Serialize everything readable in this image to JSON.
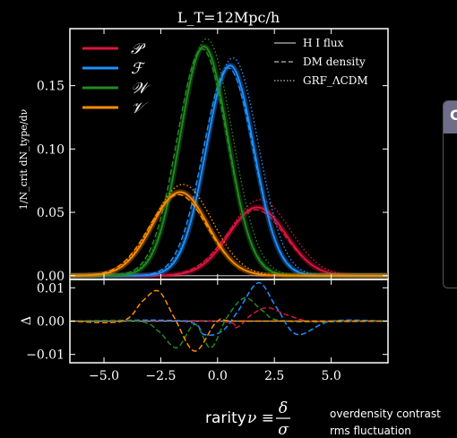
{
  "title": "L_T=12Mpc/h",
  "ylabel_top": "1/N_crit dN_type/dν",
  "ylabel_bottom": "Δ",
  "xlabel": "rarity ν ≡ δ/σ",
  "xlabel_prefix": "rarity",
  "delta_symbol": "δ",
  "sigma_symbol": "σ",
  "nu_symbol": "ν ≡",
  "side_note_1": "overdensity contrast",
  "side_note_2": "rms fluctuation",
  "side_panel_letter": "C",
  "colors": {
    "P": "#dc143c",
    "F": "#1e90ff",
    "W": "#228b22",
    "V": "#ff8c00",
    "zero_line": "#aaaaaa"
  },
  "chart_data": [
    {
      "type": "line",
      "panel": "top",
      "xlim": [
        -6.5,
        7.5
      ],
      "ylim": [
        -0.003,
        0.195
      ],
      "xticks": [
        -5.0,
        -2.5,
        0.0,
        2.5,
        5.0
      ],
      "yticks": [
        0.0,
        0.05,
        0.1,
        0.15
      ],
      "ytick_labels": [
        "0.00",
        "0.05",
        "0.10",
        "0.15"
      ],
      "legend_types": [
        {
          "key": "P",
          "label": "𝒫"
        },
        {
          "key": "F",
          "label": "ℱ"
        },
        {
          "key": "W",
          "label": "𝒲"
        },
        {
          "key": "V",
          "label": "𝒱"
        }
      ],
      "legend_styles": [
        {
          "style": "solid",
          "label": "H I flux"
        },
        {
          "style": "dashed",
          "label": "DM density"
        },
        {
          "style": "dotted",
          "label": "GRF_ΛCDM"
        }
      ],
      "series": [
        {
          "name": "𝒫",
          "key": "P",
          "mean": 1.75,
          "sigma": 1.25,
          "amp": 0.054
        },
        {
          "name": "ℱ",
          "key": "F",
          "mean": 0.55,
          "sigma": 1.05,
          "amp": 0.166
        },
        {
          "name": "𝒲",
          "key": "W",
          "mean": -0.6,
          "sigma": 1.05,
          "amp": 0.181
        },
        {
          "name": "𝒱",
          "key": "V",
          "mean": -1.65,
          "sigma": 1.22,
          "amp": 0.066
        }
      ]
    },
    {
      "type": "line",
      "panel": "bottom",
      "xlim": [
        -6.5,
        7.5
      ],
      "ylim": [
        -0.0125,
        0.0125
      ],
      "xticks": [
        -5.0,
        -2.5,
        0.0,
        2.5,
        5.0
      ],
      "xtick_labels": [
        "−5.0",
        "−2.5",
        "0.0",
        "2.5",
        "5.0"
      ],
      "yticks": [
        -0.01,
        0.0,
        0.01
      ],
      "ytick_labels": [
        "−0.01",
        "0.00",
        "0.01"
      ],
      "series": [
        {
          "key": "P",
          "x": [
            -6.5,
            0.0,
            0.8,
            1.5,
            2.2,
            3.0,
            4.0,
            5.5,
            7.5
          ],
          "y": [
            0,
            0,
            -0.002,
            0.002,
            0.004,
            0.002,
            0,
            0,
            0
          ]
        },
        {
          "key": "F",
          "x": [
            -6.5,
            -1.5,
            -0.6,
            0.2,
            0.9,
            1.8,
            2.6,
            3.5,
            5.0,
            7.5
          ],
          "y": [
            0,
            0,
            -0.004,
            -0.003,
            0.003,
            0.0115,
            0.004,
            -0.004,
            0,
            0
          ]
        },
        {
          "key": "W",
          "x": [
            -6.5,
            -3.5,
            -2.6,
            -1.8,
            -1.0,
            -0.3,
            0.4,
            1.2,
            2.0,
            3.0,
            7.5
          ],
          "y": [
            0,
            0,
            -0.003,
            -0.008,
            -0.001,
            -0.008,
            0.001,
            0.007,
            0.003,
            0,
            0
          ]
        },
        {
          "key": "V",
          "x": [
            -6.5,
            -4.2,
            -3.3,
            -2.6,
            -1.9,
            -1.0,
            0.0,
            1.0,
            7.5
          ],
          "y": [
            0,
            0,
            0.006,
            0.009,
            0.001,
            -0.009,
            0,
            0,
            0
          ]
        }
      ]
    }
  ]
}
